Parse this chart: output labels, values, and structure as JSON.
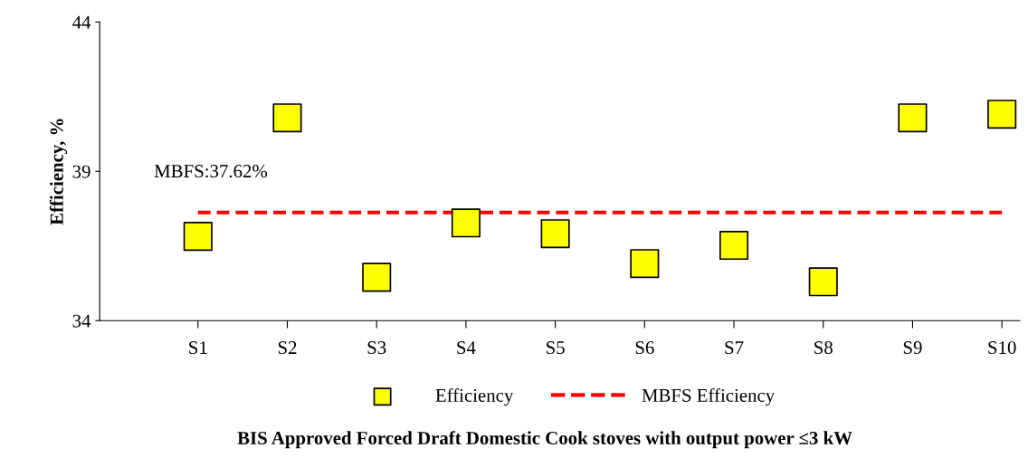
{
  "chart_data": {
    "type": "scatter",
    "xlabel": "BIS Approved Forced Draft Domestic Cook stoves with output power ≤3 kW",
    "ylabel": "Efficiency, %",
    "categories": [
      "S1",
      "S2",
      "S3",
      "S4",
      "S5",
      "S6",
      "S7",
      "S8",
      "S9",
      "S10"
    ],
    "series": [
      {
        "name": "Efficiency",
        "color": "#ffff00",
        "marker": "square",
        "values": [
          36.82,
          40.79,
          35.45,
          37.27,
          36.91,
          35.91,
          36.52,
          35.3,
          40.79,
          40.91
        ]
      }
    ],
    "ref_lines": [
      {
        "axis": "y",
        "value": 37.62,
        "label": "MBFS Efficiency",
        "color": "#ff0000",
        "line_style": "dashed"
      }
    ],
    "annotations": [
      {
        "text": "MBFS:37.62%",
        "x": "S1",
        "y": 37.62
      }
    ],
    "ylim": [
      34,
      44
    ],
    "yticks": [
      34,
      39,
      44
    ],
    "grid": false,
    "legend": "bottom"
  }
}
